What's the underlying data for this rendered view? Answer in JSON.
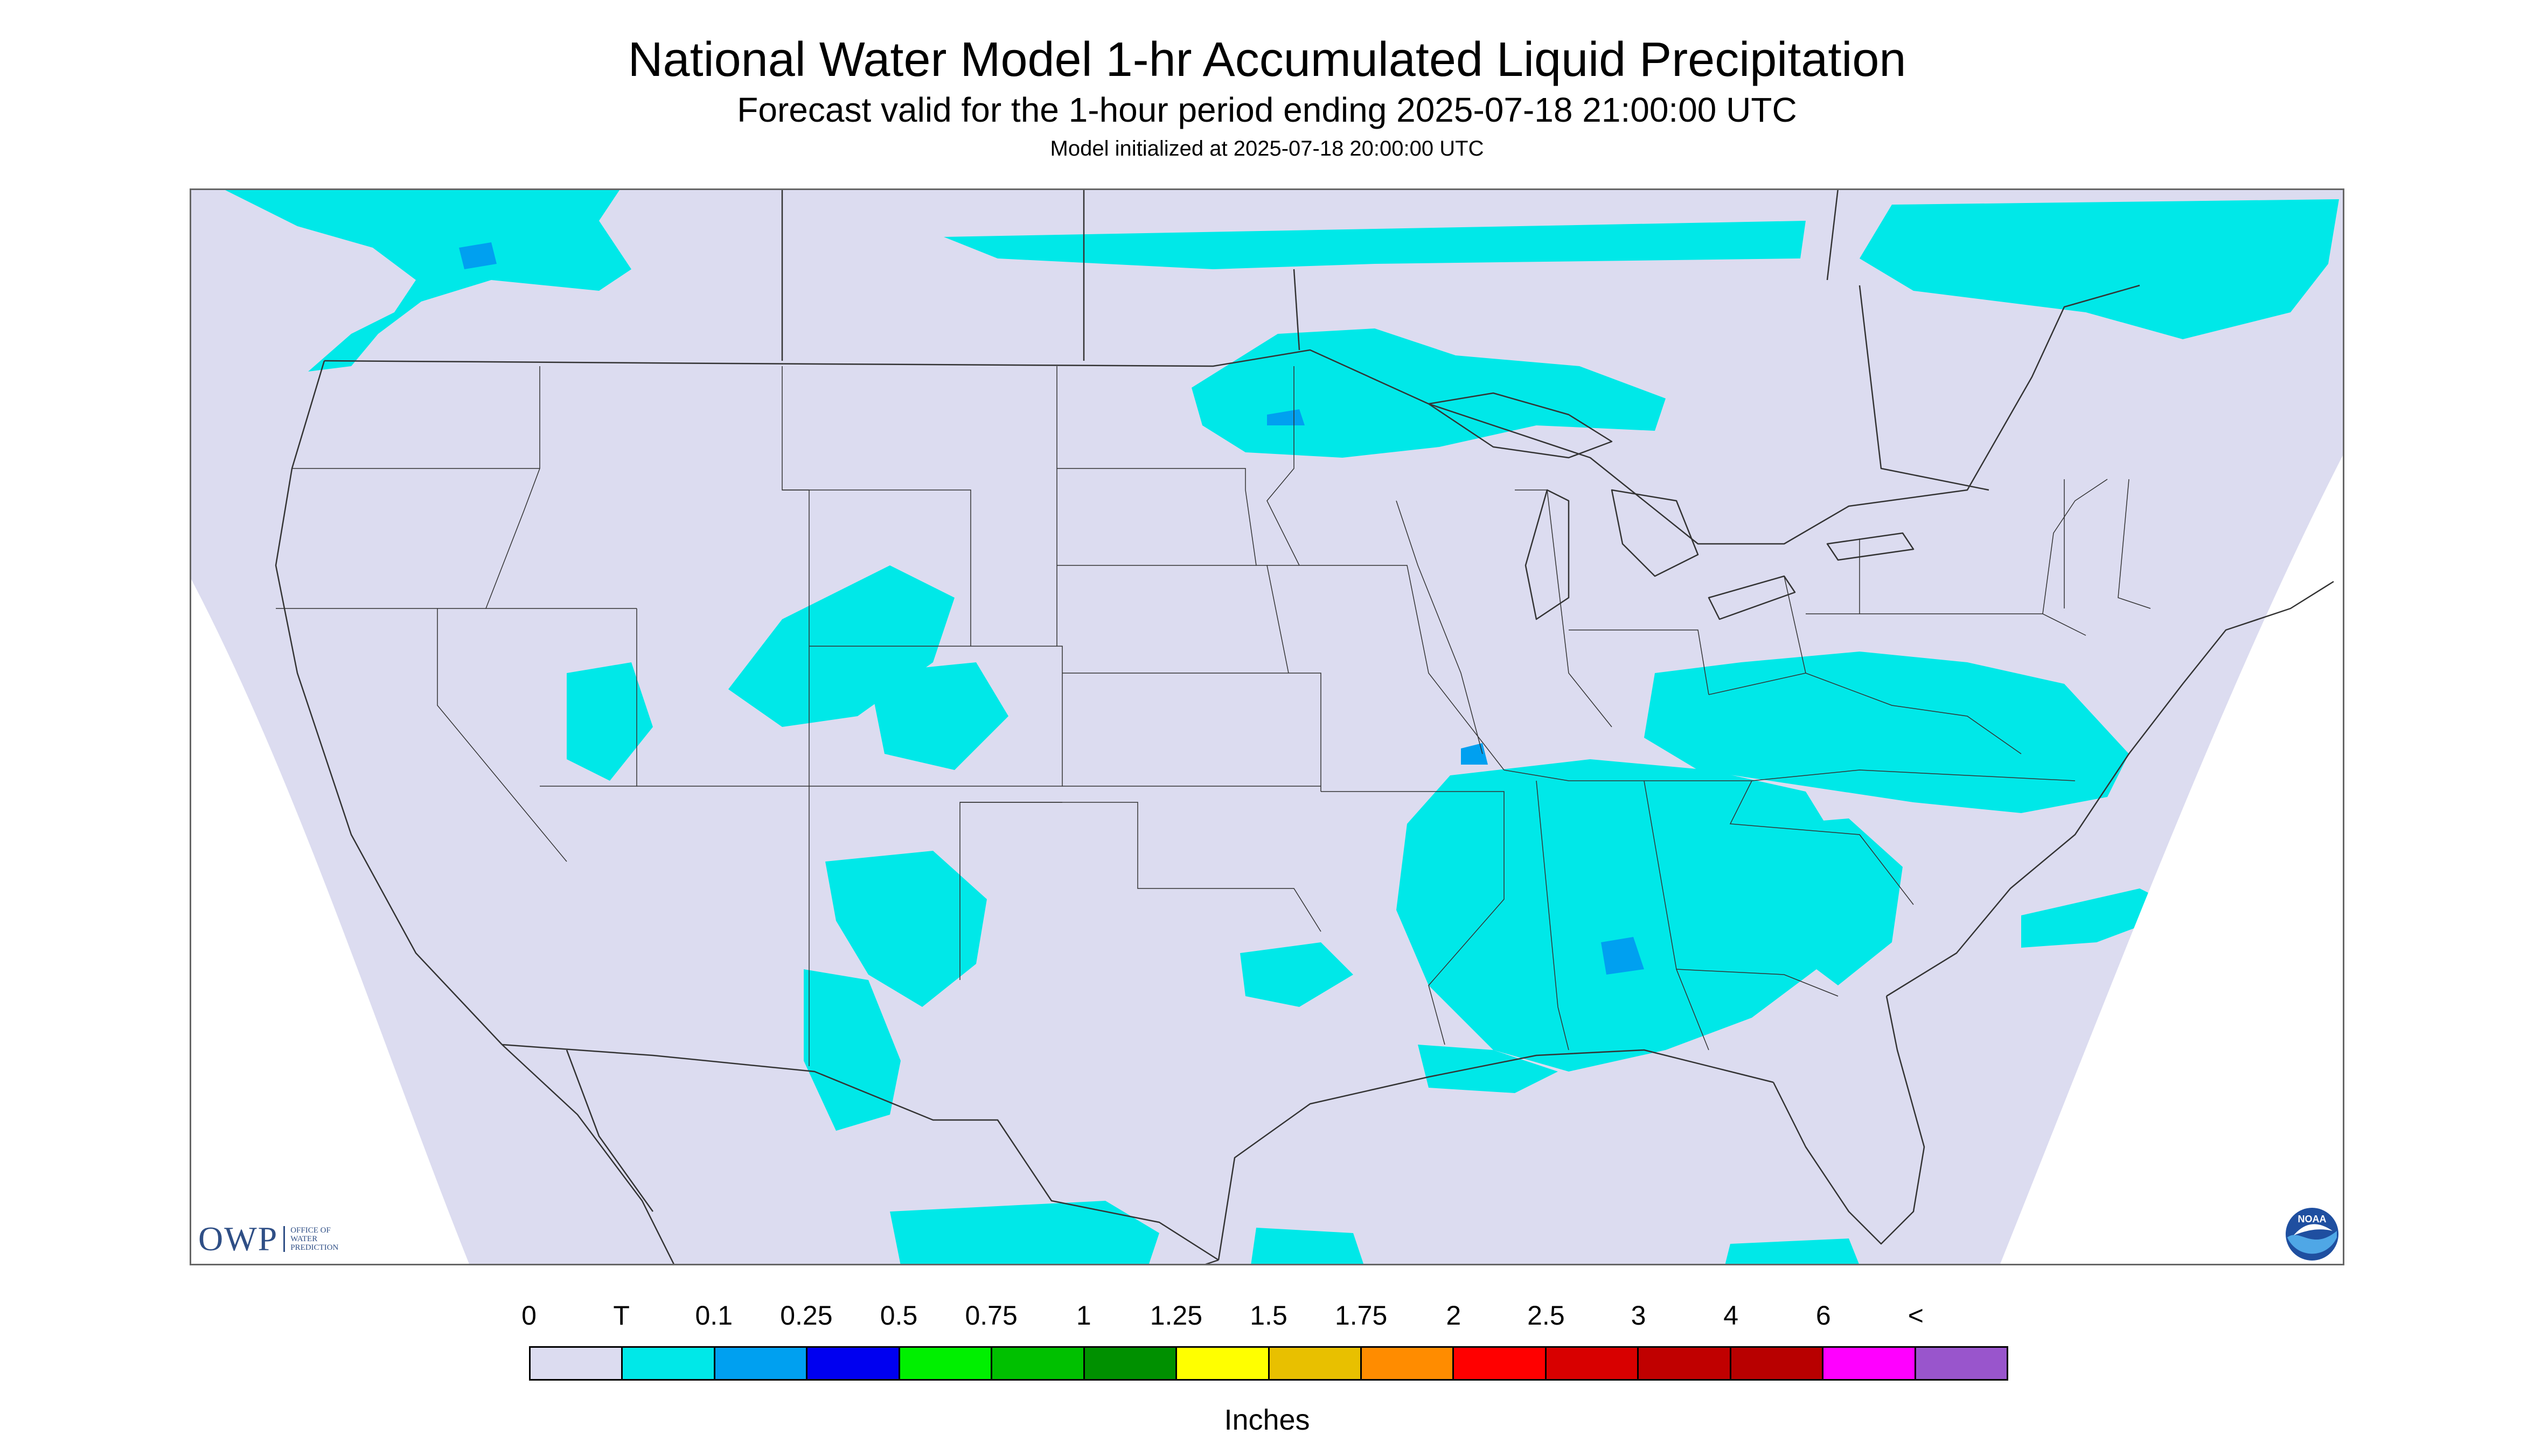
{
  "title": "National Water Model 1-hr Accumulated Liquid Precipitation",
  "subtitle": "Forecast valid for the 1-hour period ending 2025-07-18 21:00:00 UTC",
  "initialized": "Model initialized at 2025-07-18 20:00:00 UTC",
  "legend": {
    "labels": [
      "0",
      "T",
      "0.1",
      "0.25",
      "0.5",
      "0.75",
      "1",
      "1.25",
      "1.5",
      "1.75",
      "2",
      "2.5",
      "3",
      "4",
      "6",
      "<"
    ],
    "colors": [
      "#dcdcf0",
      "#00e8e8",
      "#00a0f0",
      "#0000f0",
      "#00f000",
      "#00c000",
      "#009000",
      "#ffff00",
      "#e8c000",
      "#ff8c00",
      "#ff0000",
      "#d80000",
      "#c00000",
      "#b80000",
      "#ff00ff",
      "#9955cc"
    ],
    "units": "Inches"
  },
  "logos": {
    "owp_word": "OWP",
    "owp_lines": [
      "OFFICE OF",
      "WATER",
      "PREDICTION"
    ],
    "noaa_text": "NOAA"
  },
  "map_colors": {
    "background": "#dcdcf0",
    "outside": "#ffffff",
    "boundary": "#333333",
    "trace": "#00e8e8",
    "light": "#00a0f0"
  }
}
